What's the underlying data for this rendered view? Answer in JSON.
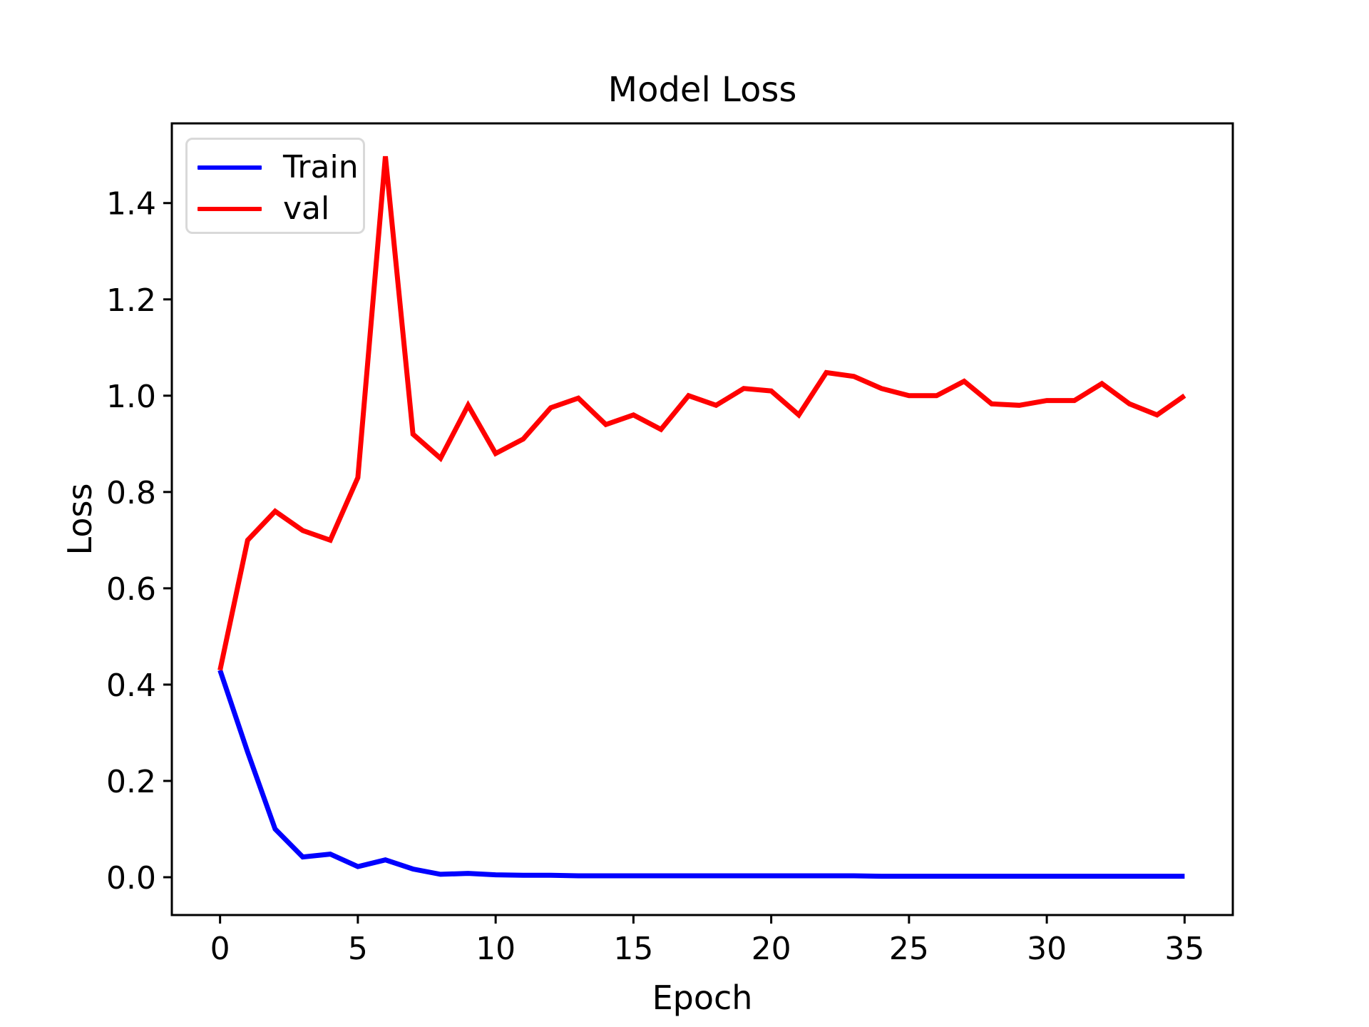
{
  "chart_data": {
    "type": "line",
    "title": "Model Loss",
    "xlabel": "Epoch",
    "ylabel": "Loss",
    "x": [
      0,
      1,
      2,
      3,
      4,
      5,
      6,
      7,
      8,
      9,
      10,
      11,
      12,
      13,
      14,
      15,
      16,
      17,
      18,
      19,
      20,
      21,
      22,
      23,
      24,
      25,
      26,
      27,
      28,
      29,
      30,
      31,
      32,
      33,
      34,
      35
    ],
    "series": [
      {
        "name": "Train",
        "color": "#0000ff",
        "values": [
          0.43,
          0.26,
          0.1,
          0.042,
          0.048,
          0.022,
          0.036,
          0.017,
          0.006,
          0.008,
          0.005,
          0.004,
          0.004,
          0.003,
          0.003,
          0.003,
          0.003,
          0.003,
          0.003,
          0.003,
          0.003,
          0.003,
          0.003,
          0.003,
          0.002,
          0.002,
          0.002,
          0.002,
          0.002,
          0.002,
          0.002,
          0.002,
          0.002,
          0.002,
          0.002,
          0.002
        ]
      },
      {
        "name": "val",
        "color": "#ff0000",
        "values": [
          0.43,
          0.7,
          0.76,
          0.72,
          0.7,
          0.83,
          1.497,
          0.92,
          0.87,
          0.98,
          0.88,
          0.91,
          0.975,
          0.995,
          0.94,
          0.96,
          0.93,
          1.0,
          0.98,
          1.015,
          1.01,
          0.96,
          1.048,
          1.04,
          1.015,
          1.0,
          1.0,
          1.03,
          0.983,
          0.98,
          0.99,
          0.99,
          1.025,
          0.983,
          0.96,
          1.0
        ]
      }
    ],
    "x_ticks": {
      "values": [
        0,
        5,
        10,
        15,
        20,
        25,
        30,
        35
      ],
      "labels": [
        "0",
        "5",
        "10",
        "15",
        "20",
        "25",
        "30",
        "35"
      ]
    },
    "y_ticks": {
      "values": [
        0.0,
        0.2,
        0.4,
        0.6,
        0.8,
        1.0,
        1.2,
        1.4
      ],
      "labels": [
        "0.0",
        "0.2",
        "0.4",
        "0.6",
        "0.8",
        "1.0",
        "1.2",
        "1.4"
      ]
    },
    "xlim": [
      -1.75,
      36.75
    ],
    "ylim": [
      -0.0785,
      1.5655
    ],
    "grid": false,
    "legend_position": "upper left",
    "colors": {
      "train_line": "#0000ff",
      "val_line": "#ff0000",
      "text": "#000000",
      "spine": "#000000",
      "legend_border": "#d9d9d9",
      "background": "#ffffff"
    }
  }
}
